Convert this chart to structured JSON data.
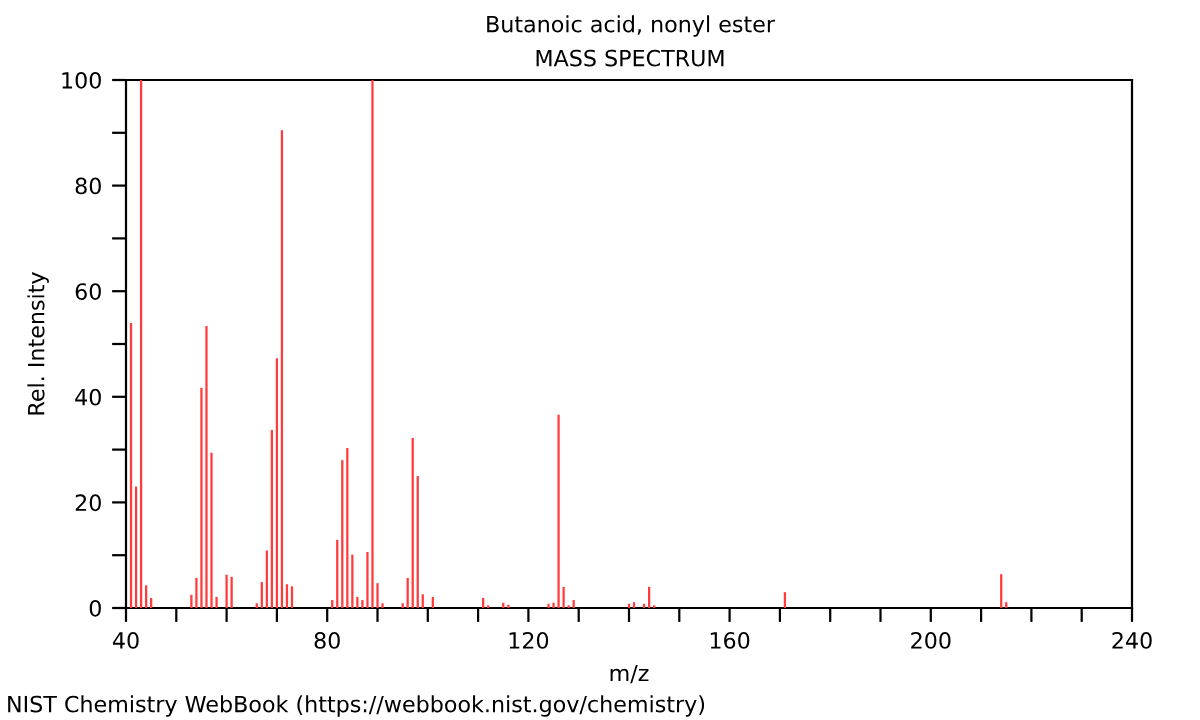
{
  "chart_data": {
    "type": "bar",
    "title": "Butanoic acid, nonyl ester",
    "subtitle": "MASS SPECTRUM",
    "xlabel": "m/z",
    "ylabel": "Rel. Intensity",
    "x": [
      41,
      42,
      43,
      44,
      45,
      53,
      54,
      55,
      56,
      57,
      58,
      60,
      61,
      66,
      67,
      68,
      69,
      70,
      71,
      72,
      73,
      81,
      82,
      83,
      84,
      85,
      86,
      87,
      88,
      89,
      90,
      91,
      95,
      96,
      97,
      98,
      99,
      101,
      111,
      112,
      115,
      116,
      124,
      125,
      126,
      127,
      128,
      129,
      140,
      141,
      143,
      144,
      145,
      171,
      214,
      215
    ],
    "values": [
      54,
      23,
      100,
      4.3,
      1.9,
      2.5,
      5.7,
      41.7,
      53.4,
      29.4,
      2.1,
      6.3,
      5.9,
      0.9,
      4.9,
      10.9,
      33.7,
      47.3,
      90.5,
      4.5,
      4.1,
      1.5,
      12.9,
      28,
      30.3,
      10.1,
      2.1,
      1.5,
      10.6,
      100,
      4.7,
      0.9,
      0.9,
      5.7,
      32.2,
      25,
      2.6,
      2.1,
      1.9,
      0.5,
      1,
      0.6,
      0.8,
      1,
      36.6,
      4,
      0.5,
      1.5,
      0.8,
      1.1,
      0.8,
      4,
      0.5,
      3,
      6.4,
      1.1
    ],
    "color": "#ff3b3b",
    "xlim": [
      40,
      240
    ],
    "xticks": [
      40,
      {
        "value": 50,
        "label": null
      },
      {
        "value": 60,
        "label": null
      },
      {
        "value": 70,
        "label": null
      },
      80,
      {
        "value": 90,
        "label": null
      },
      {
        "value": 100,
        "label": null
      },
      {
        "value": 110,
        "label": null
      },
      120,
      {
        "value": 130,
        "label": null
      },
      {
        "value": 140,
        "label": null
      },
      {
        "value": 150,
        "label": null
      },
      160,
      {
        "value": 170,
        "label": null
      },
      {
        "value": 180,
        "label": null
      },
      {
        "value": 190,
        "label": null
      },
      200,
      {
        "value": 210,
        "label": null
      },
      {
        "value": 220,
        "label": null
      },
      {
        "value": 230,
        "label": null
      },
      240
    ],
    "ylim": [
      0,
      100
    ],
    "yticks": [
      0,
      {
        "value": 10,
        "label": null
      },
      20,
      {
        "value": 30,
        "label": null
      },
      40,
      {
        "value": 50,
        "label": null
      },
      60,
      {
        "value": 70,
        "label": null
      },
      80,
      {
        "value": 90,
        "label": null
      },
      100
    ],
    "grid": false,
    "annotations": [
      "NIST Chemistry WebBook (https://webbook.nist.gov/chemistry)"
    ]
  }
}
